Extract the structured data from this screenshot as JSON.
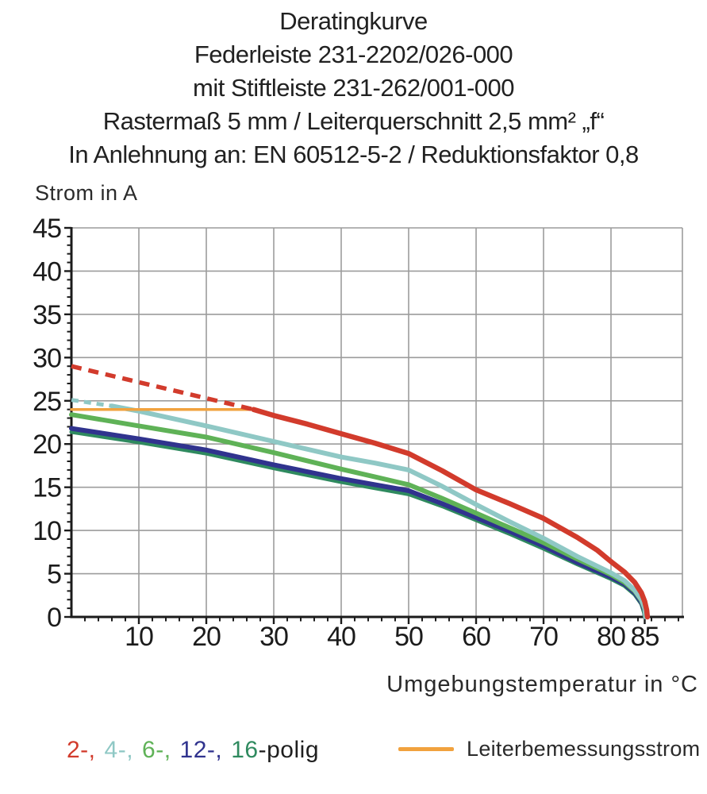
{
  "title": {
    "lines": [
      "Deratingkurve",
      "Federleiste 231-2202/026-000",
      "mit Stiftleiste 231-262/001-000",
      "Rastermaß 5 mm / Leiterquerschnitt 2,5 mm² „f“",
      "In Anlehnung an: EN 60512-5-2 / Reduktionsfaktor 0,8"
    ]
  },
  "chart_data": {
    "type": "line",
    "title": "Deratingkurve",
    "xlabel": "Umgebungstemperatur in °C",
    "ylabel": "Strom in A",
    "xlim": [
      0,
      90.5
    ],
    "ylim": [
      0,
      45
    ],
    "x_major_ticks": [
      10,
      20,
      30,
      40,
      50,
      60,
      70,
      80,
      85
    ],
    "x_minor_step": 2,
    "y_major_ticks": [
      0,
      5,
      10,
      15,
      20,
      25,
      30,
      35,
      40,
      45
    ],
    "y_minor_step": 1,
    "x_gridlines": [
      10,
      20,
      30,
      40,
      50,
      60,
      70,
      80
    ],
    "y_gridlines": [
      5,
      10,
      15,
      20,
      25,
      30,
      35,
      40,
      45
    ],
    "grid": true,
    "grid_color": "#9c9c9c",
    "axis_color": "#1b1b1b",
    "legend_position": "bottom",
    "series": [
      {
        "name": "16-polig",
        "color": "#2f8a5f",
        "style": "solid",
        "width": 5,
        "points": [
          [
            0,
            21.4
          ],
          [
            10,
            20.2
          ],
          [
            20,
            18.9
          ],
          [
            30,
            17.2
          ],
          [
            40,
            15.6
          ],
          [
            45,
            14.9
          ],
          [
            50,
            14.2
          ],
          [
            55,
            12.8
          ],
          [
            60,
            11.2
          ],
          [
            65,
            9.6
          ],
          [
            70,
            7.9
          ],
          [
            75,
            6.1
          ],
          [
            80,
            4.4
          ],
          [
            82,
            3.6
          ],
          [
            83.5,
            2.6
          ],
          [
            84.5,
            1.5
          ],
          [
            84.9,
            0.5
          ],
          [
            85,
            0
          ]
        ]
      },
      {
        "name": "12-polig",
        "color": "#30338e",
        "style": "solid",
        "width": 6,
        "points": [
          [
            0,
            21.8
          ],
          [
            10,
            20.6
          ],
          [
            20,
            19.3
          ],
          [
            30,
            17.6
          ],
          [
            40,
            16.0
          ],
          [
            45,
            15.3
          ],
          [
            50,
            14.6
          ],
          [
            55,
            13.1
          ],
          [
            60,
            11.5
          ],
          [
            65,
            9.9
          ],
          [
            70,
            8.2
          ],
          [
            75,
            6.3
          ],
          [
            80,
            4.6
          ],
          [
            82,
            3.8
          ],
          [
            83.5,
            2.8
          ],
          [
            84.5,
            1.7
          ],
          [
            85,
            0.7
          ],
          [
            85.05,
            0
          ]
        ]
      },
      {
        "name": "6-polig",
        "color": "#5fb257",
        "style": "solid",
        "width": 6,
        "points": [
          [
            0,
            23.4
          ],
          [
            10,
            22.1
          ],
          [
            20,
            20.8
          ],
          [
            30,
            19.0
          ],
          [
            40,
            17.1
          ],
          [
            45,
            16.2
          ],
          [
            50,
            15.3
          ],
          [
            55,
            13.7
          ],
          [
            60,
            12.0
          ],
          [
            65,
            10.3
          ],
          [
            70,
            8.6
          ],
          [
            75,
            6.7
          ],
          [
            80,
            4.9
          ],
          [
            82,
            4.0
          ],
          [
            83.5,
            3.0
          ],
          [
            84.5,
            1.9
          ],
          [
            85,
            0.9
          ],
          [
            85.1,
            0
          ]
        ]
      },
      {
        "name": "4-polig",
        "color": "#8fc8c5",
        "style": "solid",
        "width": 6,
        "points": [
          [
            6,
            24.4
          ],
          [
            10,
            23.8
          ],
          [
            20,
            22.1
          ],
          [
            30,
            20.3
          ],
          [
            40,
            18.5
          ],
          [
            45,
            17.8
          ],
          [
            50,
            17.0
          ],
          [
            55,
            15.1
          ],
          [
            60,
            13.0
          ],
          [
            65,
            11.0
          ],
          [
            70,
            9.1
          ],
          [
            75,
            7.0
          ],
          [
            80,
            5.1
          ],
          [
            82,
            4.2
          ],
          [
            83.5,
            3.1
          ],
          [
            84.5,
            2.0
          ],
          [
            85,
            1.0
          ],
          [
            85.15,
            0
          ]
        ]
      },
      {
        "name": "4-polig",
        "color": "#8fc8c5",
        "style": "dashed",
        "width": 5,
        "dash": [
          9,
          7
        ],
        "points": [
          [
            0,
            25.1
          ],
          [
            6,
            24.4
          ]
        ]
      },
      {
        "name": "Leiterbemessungsstrom",
        "color": "#f1a23e",
        "style": "solid",
        "width": 3.5,
        "points": [
          [
            0,
            24
          ],
          [
            27,
            24
          ]
        ]
      },
      {
        "name": "2-polig",
        "color": "#d23b2c",
        "style": "dashed",
        "width": 5.5,
        "dash": [
          13,
          9
        ],
        "points": [
          [
            0,
            29
          ],
          [
            27,
            24
          ]
        ]
      },
      {
        "name": "2-polig",
        "color": "#d23b2c",
        "style": "solid",
        "width": 6.5,
        "points": [
          [
            27,
            24
          ],
          [
            30,
            23.3
          ],
          [
            35,
            22.3
          ],
          [
            40,
            21.2
          ],
          [
            45,
            20.1
          ],
          [
            50,
            18.9
          ],
          [
            55,
            16.9
          ],
          [
            60,
            14.7
          ],
          [
            65,
            13.1
          ],
          [
            70,
            11.4
          ],
          [
            75,
            9.2
          ],
          [
            78,
            7.7
          ],
          [
            80,
            6.4
          ],
          [
            82,
            5.2
          ],
          [
            83.5,
            4.0
          ],
          [
            84.5,
            2.8
          ],
          [
            85,
            1.8
          ],
          [
            85.3,
            0.8
          ],
          [
            85.4,
            0
          ]
        ]
      }
    ]
  },
  "legend_poles": {
    "items": [
      {
        "label": "2-,",
        "color": "#d23b2c"
      },
      {
        "label": "4-,",
        "color": "#8fc8c5"
      },
      {
        "label": "6-,",
        "color": "#5fb257"
      },
      {
        "label": "12-,",
        "color": "#30338e"
      },
      {
        "label": "16",
        "color": "#2f8a5f"
      }
    ],
    "suffix": "-polig"
  },
  "legend_rated": {
    "swatch_color": "#f1a23e",
    "label": "Leiterbemessungsstrom"
  }
}
